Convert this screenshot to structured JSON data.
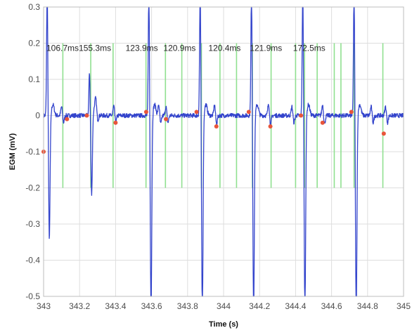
{
  "chart_data": {
    "type": "line",
    "title": "",
    "xlabel": "Time (s)",
    "ylabel": "EGM (mV)",
    "xlim": [
      343,
      345
    ],
    "ylim": [
      -0.5,
      0.3
    ],
    "xticks": [
      343,
      343.2,
      343.4,
      343.6,
      343.8,
      344,
      344.2,
      344.4,
      344.6,
      344.8,
      345
    ],
    "xtick_labels": [
      "343",
      "343.2",
      "343.4",
      "343.6",
      "343.8",
      "344",
      "344.2",
      "344.4",
      "344.6",
      "344.8",
      "345"
    ],
    "yticks": [
      0.3,
      0.2,
      0.1,
      0,
      -0.1,
      -0.2,
      -0.3,
      -0.4,
      -0.5
    ],
    "ytick_labels": [
      "0.3",
      "0.2",
      "0.1",
      "0",
      "-0.1",
      "-0.2",
      "-0.3",
      "-0.4",
      "-0.5"
    ],
    "grid": true,
    "colors": {
      "signal": "#3344cc",
      "markers": "#90e090",
      "points": "#e8553a",
      "grid": "#dedede"
    },
    "interval_labels": [
      "106.7ms",
      "155.3ms",
      "123.9ms",
      "120.9ms",
      "120.4ms",
      "121.9ms",
      "172.5ms"
    ],
    "interval_label_x": [
      343.0,
      343.18,
      343.44,
      343.65,
      343.9,
      344.13,
      344.37
    ],
    "interval_label_y": 0.2,
    "marker_x": [
      343.107,
      343.262,
      343.386,
      343.569,
      343.677,
      343.768,
      343.877,
      343.98,
      344.072,
      344.16,
      344.264,
      344.4,
      344.45,
      344.52,
      344.615,
      344.652,
      344.725,
      344.885
    ],
    "marker_range": [
      -0.2,
      0.2
    ],
    "peaks": [
      {
        "x": 343.02,
        "up": 0.3,
        "down": -0.29
      },
      {
        "x": 343.255,
        "up": 0.07,
        "down": -0.17
      },
      {
        "x": 343.585,
        "up": 0.3,
        "down": -0.5
      },
      {
        "x": 343.87,
        "up": 0.3,
        "down": -0.5
      },
      {
        "x": 344.155,
        "up": 0.3,
        "down": -0.5
      },
      {
        "x": 344.44,
        "up": 0.3,
        "down": -0.5
      },
      {
        "x": 344.725,
        "up": 0.3,
        "down": -0.5
      }
    ],
    "small_deflections": [
      {
        "x": 343.1,
        "a": 0.025
      },
      {
        "x": 343.29,
        "a": 0.02
      },
      {
        "x": 343.39,
        "a": 0.025
      },
      {
        "x": 343.64,
        "a": 0.03
      },
      {
        "x": 343.68,
        "a": 0.025
      },
      {
        "x": 343.95,
        "a": 0.03
      },
      {
        "x": 344.25,
        "a": 0.035
      },
      {
        "x": 344.38,
        "a": 0.025
      },
      {
        "x": 344.55,
        "a": 0.03
      },
      {
        "x": 344.82,
        "a": 0.025
      },
      {
        "x": 344.9,
        "a": 0.025
      }
    ],
    "annotation_points": [
      {
        "x": 343.0,
        "y": -0.1
      },
      {
        "x": 343.13,
        "y": -0.01
      },
      {
        "x": 343.24,
        "y": 0.0
      },
      {
        "x": 343.4,
        "y": -0.02
      },
      {
        "x": 343.57,
        "y": 0.01
      },
      {
        "x": 343.68,
        "y": -0.01
      },
      {
        "x": 343.85,
        "y": 0.01
      },
      {
        "x": 343.96,
        "y": -0.03
      },
      {
        "x": 344.14,
        "y": 0.01
      },
      {
        "x": 344.26,
        "y": -0.03
      },
      {
        "x": 344.43,
        "y": 0.0
      },
      {
        "x": 344.55,
        "y": -0.02
      },
      {
        "x": 344.71,
        "y": 0.01
      },
      {
        "x": 344.89,
        "y": -0.05
      }
    ]
  }
}
